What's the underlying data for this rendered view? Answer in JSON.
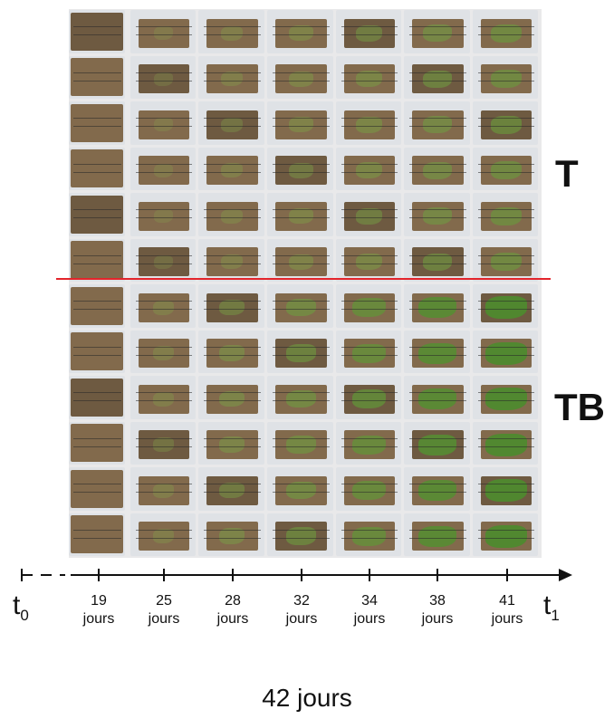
{
  "groups": {
    "top": "T",
    "bottom": "TB"
  },
  "timeline": {
    "start_label": "t",
    "start_sub": "0",
    "end_label": "t",
    "end_sub": "1",
    "days": [
      {
        "value": "19",
        "unit": "jours"
      },
      {
        "value": "25",
        "unit": "jours"
      },
      {
        "value": "28",
        "unit": "jours"
      },
      {
        "value": "32",
        "unit": "jours"
      },
      {
        "value": "34",
        "unit": "jours"
      },
      {
        "value": "38",
        "unit": "jours"
      },
      {
        "value": "41",
        "unit": "jours"
      }
    ],
    "total_duration": "42 jours"
  },
  "photo_grid": {
    "rows": 12,
    "columns": 7,
    "rows_per_group": 6
  },
  "colors": {
    "divider": "#e3242b",
    "soil": "#8a7150",
    "vegetation": "#4e8a2e",
    "frame": "#dfe2e6"
  }
}
